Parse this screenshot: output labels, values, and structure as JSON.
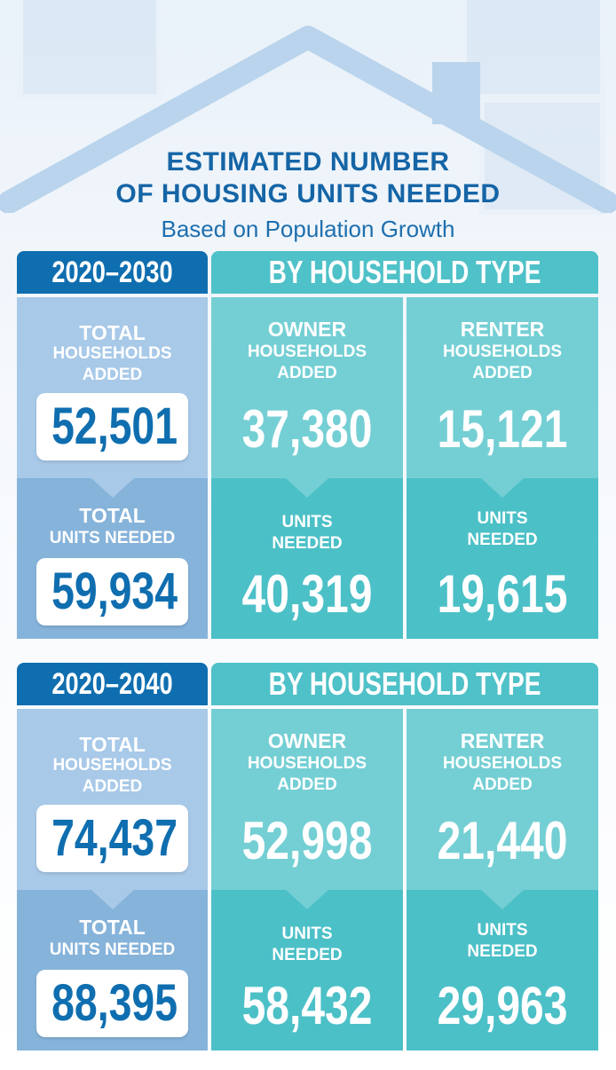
{
  "title": {
    "line1": "ESTIMATED NUMBER",
    "line2": "OF HOUSING UNITS NEEDED",
    "subtitle": "Based on Population Growth"
  },
  "colors": {
    "dark_blue": "#0f6eaf",
    "teal": "#4fc1c8",
    "light_blue": "#a8c9e8",
    "light_teal": "#74cfd4"
  },
  "sections": [
    {
      "period": "2020–2030",
      "type_header": "BY HOUSEHOLD TYPE",
      "total": {
        "label_top_1": "TOTAL",
        "label_top_2": "HOUSEHOLDS",
        "label_top_3": "ADDED",
        "households_added": "52,501",
        "label_bot_1": "TOTAL",
        "label_bot_2": "UNITS NEEDED",
        "units_needed": "59,934"
      },
      "owner": {
        "label_top_1": "OWNER",
        "label_top_2": "HOUSEHOLDS",
        "label_top_3": "ADDED",
        "households_added": "37,380",
        "label_bot_1": "UNITS",
        "label_bot_2": "NEEDED",
        "units_needed": "40,319"
      },
      "renter": {
        "label_top_1": "RENTER",
        "label_top_2": "HOUSEHOLDS",
        "label_top_3": "ADDED",
        "households_added": "15,121",
        "label_bot_1": "UNITS",
        "label_bot_2": "NEEDED",
        "units_needed": "19,615"
      }
    },
    {
      "period": "2020–2040",
      "type_header": "BY HOUSEHOLD TYPE",
      "total": {
        "label_top_1": "TOTAL",
        "label_top_2": "HOUSEHOLDS",
        "label_top_3": "ADDED",
        "households_added": "74,437",
        "label_bot_1": "TOTAL",
        "label_bot_2": "UNITS NEEDED",
        "units_needed": "88,395"
      },
      "owner": {
        "label_top_1": "OWNER",
        "label_top_2": "HOUSEHOLDS",
        "label_top_3": "ADDED",
        "households_added": "52,998",
        "label_bot_1": "UNITS",
        "label_bot_2": "NEEDED",
        "units_needed": "58,432"
      },
      "renter": {
        "label_top_1": "RENTER",
        "label_top_2": "HOUSEHOLDS",
        "label_top_3": "ADDED",
        "households_added": "21,440",
        "label_bot_1": "UNITS",
        "label_bot_2": "NEEDED",
        "units_needed": "29,963"
      }
    }
  ]
}
